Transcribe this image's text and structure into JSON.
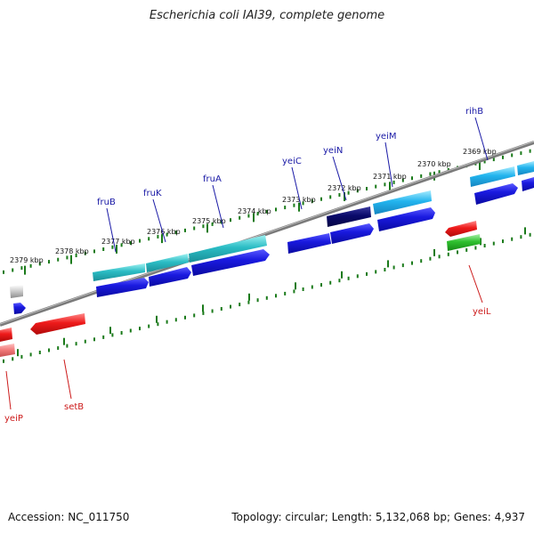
{
  "title": "Escherichia coli IAI39, complete genome",
  "footer": {
    "accession": "Accession: NC_011750",
    "summary": "Topology: circular; Length: 5,132,068 bp; Genes: 4,937"
  },
  "colors": {
    "backbone": "#7a7a7a",
    "tick": "#1a7a1a",
    "forward_label": "#1a1aa6",
    "reverse_label": "#cc1a1a"
  },
  "ticks": [
    {
      "label": "2379 kbp"
    },
    {
      "label": "2378 kbp"
    },
    {
      "label": "2377 kbp"
    },
    {
      "label": "2376 kbp"
    },
    {
      "label": "2375 kbp"
    },
    {
      "label": "2374 kbp"
    },
    {
      "label": "2373 kbp"
    },
    {
      "label": "2372 kbp"
    },
    {
      "label": "2371 kbp"
    },
    {
      "label": "2370 kbp"
    },
    {
      "label": "2369 kbp"
    }
  ],
  "labels": [
    {
      "text": "fruB",
      "strand": "forward"
    },
    {
      "text": "fruK",
      "strand": "forward"
    },
    {
      "text": "fruA",
      "strand": "forward"
    },
    {
      "text": "yeiC",
      "strand": "forward"
    },
    {
      "text": "yeiN",
      "strand": "forward"
    },
    {
      "text": "yeiM",
      "strand": "forward"
    },
    {
      "text": "rihB",
      "strand": "forward"
    },
    {
      "text": "yeiL",
      "strand": "reverse"
    },
    {
      "text": "setB",
      "strand": "reverse"
    },
    {
      "text": "yeiP",
      "strand": "reverse"
    }
  ]
}
